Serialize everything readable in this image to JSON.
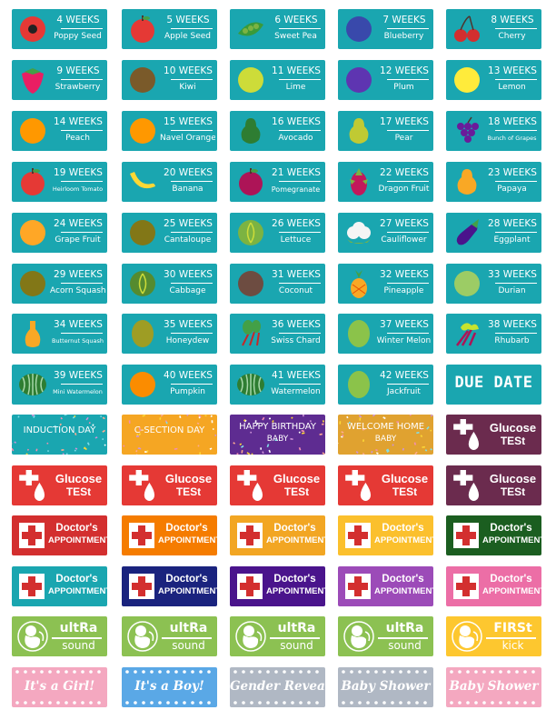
{
  "weeks": [
    {
      "w": "4 WEEKS",
      "n": "Poppy Seed",
      "icon": "poppy-seed-icon",
      "c": "#e53935",
      "shape": "flower"
    },
    {
      "w": "5 WEEKS",
      "n": "Apple Seed",
      "icon": "apple-icon",
      "c": "#e53935",
      "shape": "apple"
    },
    {
      "w": "6 WEEKS",
      "n": "Sweet Pea",
      "icon": "sweet-pea-icon",
      "c": "#3a9a3a",
      "shape": "pea"
    },
    {
      "w": "7 WEEKS",
      "n": "Blueberry",
      "icon": "blueberry-icon",
      "c": "#3949ab",
      "shape": "circle"
    },
    {
      "w": "8 WEEKS",
      "n": "Cherry",
      "icon": "cherry-icon",
      "c": "#d32f2f",
      "shape": "cherry"
    },
    {
      "w": "9 WEEKS",
      "n": "Strawberry",
      "icon": "strawberry-icon",
      "c": "#e91e63",
      "shape": "strawberry"
    },
    {
      "w": "10 WEEKS",
      "n": "Kiwi",
      "icon": "kiwi-icon",
      "c": "#7a5a2a",
      "shape": "circle"
    },
    {
      "w": "11 WEEKS",
      "n": "Lime",
      "icon": "lime-icon",
      "c": "#cddc39",
      "shape": "circle"
    },
    {
      "w": "12 WEEKS",
      "n": "Plum",
      "icon": "plum-icon",
      "c": "#5e35b1",
      "shape": "circle"
    },
    {
      "w": "13 WEEKS",
      "n": "Lemon",
      "icon": "lemon-icon",
      "c": "#ffeb3b",
      "shape": "circle"
    },
    {
      "w": "14 WEEKS",
      "n": "Peach",
      "icon": "peach-icon",
      "c": "#ff9800",
      "shape": "circle"
    },
    {
      "w": "15 WEEKS",
      "n": "Navel Orange",
      "icon": "orange-icon",
      "c": "#ff9800",
      "shape": "circle"
    },
    {
      "w": "16 WEEKS",
      "n": "Avocado",
      "icon": "avocado-icon",
      "c": "#2e7d32",
      "shape": "pear"
    },
    {
      "w": "17 WEEKS",
      "n": "Pear",
      "icon": "pear-icon",
      "c": "#c0ca33",
      "shape": "pear"
    },
    {
      "w": "18 WEEKS",
      "n": "Bunch of Grapes",
      "icon": "grapes-icon",
      "c": "#6a1b9a",
      "shape": "grapes",
      "small": true
    },
    {
      "w": "19 WEEKS",
      "n": "Heirloom Tomato",
      "icon": "tomato-icon",
      "c": "#e53935",
      "shape": "apple",
      "small": true
    },
    {
      "w": "20 WEEKS",
      "n": "Banana",
      "icon": "banana-icon",
      "c": "#fdd835",
      "shape": "banana"
    },
    {
      "w": "21 WEEKS",
      "n": "Pomegranate",
      "icon": "pomegranate-icon",
      "c": "#ad1457",
      "shape": "apple",
      "med": true
    },
    {
      "w": "22 WEEKS",
      "n": "Dragon Fruit",
      "icon": "dragon-fruit-icon",
      "c": "#c2185b",
      "shape": "dragon"
    },
    {
      "w": "23 WEEKS",
      "n": "Papaya",
      "icon": "papaya-icon",
      "c": "#f9a825",
      "shape": "pear"
    },
    {
      "w": "24 WEEKS",
      "n": "Grape Fruit",
      "icon": "grapefruit-icon",
      "c": "#ffa726",
      "shape": "circle"
    },
    {
      "w": "25 WEEKS",
      "n": "Cantaloupe",
      "icon": "cantaloupe-icon",
      "c": "#827717",
      "shape": "circle"
    },
    {
      "w": "26 WEEKS",
      "n": "Lettuce",
      "icon": "lettuce-icon",
      "c": "#7cb342",
      "shape": "cabbage"
    },
    {
      "w": "27 WEEKS",
      "n": "Cauliflower",
      "icon": "cauliflower-icon",
      "c": "#f5f5f5",
      "shape": "cauli"
    },
    {
      "w": "28 WEEKS",
      "n": "Eggplant",
      "icon": "eggplant-icon",
      "c": "#4a148c",
      "shape": "eggplant"
    },
    {
      "w": "29 WEEKS",
      "n": "Acorn Squash",
      "icon": "acorn-squash-icon",
      "c": "#827717",
      "shape": "circle"
    },
    {
      "w": "30 WEEKS",
      "n": "Cabbage",
      "icon": "cabbage-icon",
      "c": "#558b2f",
      "shape": "cabbage"
    },
    {
      "w": "31 WEEKS",
      "n": "Coconut",
      "icon": "coconut-icon",
      "c": "#6d4c41",
      "shape": "circle"
    },
    {
      "w": "32 WEEKS",
      "n": "Pineapple",
      "icon": "pineapple-icon",
      "c": "#f9a825",
      "shape": "pineapple"
    },
    {
      "w": "33 WEEKS",
      "n": "Durian",
      "icon": "durian-icon",
      "c": "#9ccc65",
      "shape": "circle"
    },
    {
      "w": "34 WEEKS",
      "n": "Butternut Squash",
      "icon": "butternut-squash-icon",
      "c": "#f9a825",
      "shape": "squash",
      "small": true
    },
    {
      "w": "35 WEEKS",
      "n": "Honeydew",
      "icon": "honeydew-icon",
      "c": "#9e9d24",
      "shape": "oval"
    },
    {
      "w": "36 WEEKS",
      "n": "Swiss Chard",
      "icon": "swiss-chard-icon",
      "c": "#43a047",
      "shape": "chard"
    },
    {
      "w": "37 WEEKS",
      "n": "Winter Melon",
      "icon": "winter-melon-icon",
      "c": "#8bc34a",
      "shape": "oval"
    },
    {
      "w": "38 WEEKS",
      "n": "Rhubarb",
      "icon": "rhubarb-icon",
      "c": "#c6e32f",
      "shape": "rhubarb"
    },
    {
      "w": "39 WEEKS",
      "n": "Mini Watermelon",
      "icon": "watermelon-icon",
      "c": "#2e7d32",
      "shape": "melon",
      "small": true
    },
    {
      "w": "40 WEEKS",
      "n": "Pumpkin",
      "icon": "pumpkin-icon",
      "c": "#fb8c00",
      "shape": "circle"
    },
    {
      "w": "41 WEEKS",
      "n": "Watermelon",
      "icon": "watermelon-icon",
      "c": "#2e7d32",
      "shape": "melon"
    },
    {
      "w": "42 WEEKS",
      "n": "Jackfruit",
      "icon": "jackfruit-icon",
      "c": "#8bc34a",
      "shape": "oval"
    }
  ],
  "due_date": {
    "label": "DUE DATE",
    "bg": "#1aa6b0"
  },
  "celebrations": [
    {
      "t": "INDUCTION DAY",
      "t2": "",
      "bg": "#1aa6b0"
    },
    {
      "t": "C-SECTION DAY",
      "t2": "",
      "bg": "#f5a623"
    },
    {
      "t": "HAPPY BIRTHDAY",
      "t2": "BABY",
      "bg": "#5e2c91"
    },
    {
      "t": "WELCOME HOME",
      "t2": "BABY",
      "bg": "#e0a230"
    }
  ],
  "glucose": {
    "l1": "Glucose",
    "l2": "TESt",
    "colors": [
      "#e53935",
      "#e53935",
      "#e53935",
      "#e53935",
      "#6b2b4e"
    ],
    "first_bg": "#e53935"
  },
  "doctor": {
    "l1": "Doctor's",
    "l2": "APPOINTMENT",
    "row1": [
      "#d32f2f",
      "#f57c00",
      "#f2a623",
      "#fbc02d",
      "#1b5e20"
    ],
    "row2": [
      "#1aa6b0",
      "#1a237e",
      "#4a148c",
      "#9c4bb8",
      "#ec6ea6"
    ]
  },
  "ultrasound": [
    {
      "l1": "ultRa",
      "l2": "sound",
      "bg": "#8cc152"
    },
    {
      "l1": "ultRa",
      "l2": "sound",
      "bg": "#8cc152"
    },
    {
      "l1": "ultRa",
      "l2": "sound",
      "bg": "#8cc152"
    },
    {
      "l1": "ultRa",
      "l2": "sound",
      "bg": "#8cc152"
    },
    {
      "l1": "FIRSt",
      "l2": "kick",
      "bg": "#fdc72f"
    }
  ],
  "banners": [
    {
      "t": "It's a Girl!",
      "bg": "#f4a8c0"
    },
    {
      "t": "It's a Boy!",
      "bg": "#5aa8e6"
    },
    {
      "t": "Gender Reveal",
      "bg": "#b0b8c4"
    },
    {
      "t": "Baby Shower",
      "bg": "#b0b8c4"
    },
    {
      "t": "Baby Shower",
      "bg": "#f4a8c0"
    }
  ]
}
